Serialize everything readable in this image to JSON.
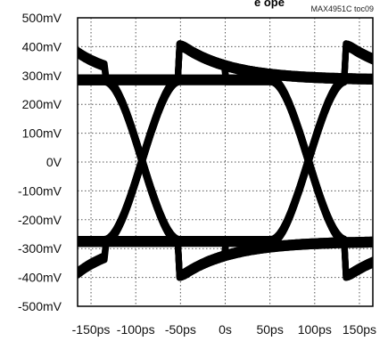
{
  "chart_data": {
    "type": "line",
    "title_fragment": "e ope",
    "figure_id": "MAX4951C toc09",
    "xlabel": "",
    "ylabel": "",
    "x_ticks": [
      -150,
      -100,
      -50,
      0,
      50,
      100,
      150
    ],
    "x_tick_labels": [
      "-150ps",
      "-100ps",
      "-50ps",
      "0s",
      "50ps",
      "100ps",
      "150ps"
    ],
    "y_ticks": [
      500,
      400,
      300,
      200,
      100,
      0,
      -100,
      -200,
      -300,
      -400,
      -500
    ],
    "y_tick_labels": [
      "500mV",
      "400mV",
      "300mV",
      "200mV",
      "100mV",
      "0V",
      "-100mV",
      "-200mV",
      "-300mV",
      "-400mV",
      "-500mV"
    ],
    "xlim": [
      -165,
      165
    ],
    "ylim": [
      -500,
      500
    ],
    "grid": true,
    "colors": {
      "trace": "#000000",
      "grid": "#555555",
      "axes": "#000000"
    },
    "eye": {
      "high_level_mV": 285,
      "low_level_mV": -275,
      "overshoot_high_mV": 410,
      "overshoot_low_mV": -400,
      "crossing_times_ps": [
        -93,
        93
      ],
      "crossing_level_mV": 0
    }
  }
}
